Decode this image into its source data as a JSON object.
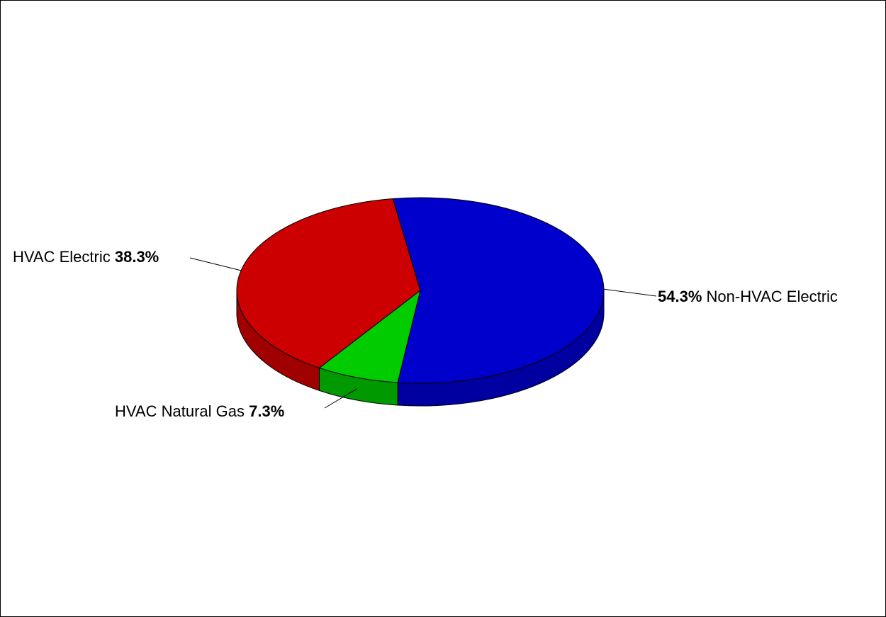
{
  "chart_data": {
    "type": "pie",
    "style": "3d",
    "slices": [
      {
        "label": "Non-HVAC Electric",
        "value": 54.3,
        "display": "54.3%",
        "color": "#0000CC",
        "side_color": "#0000A0",
        "label_side": "right"
      },
      {
        "label": "HVAC Natural Gas",
        "value": 7.3,
        "display": "7.3%",
        "color": "#00CC00",
        "side_color": "#009900",
        "label_side": "bottom"
      },
      {
        "label": "HVAC Electric",
        "value": 38.3,
        "display": "38.3%",
        "color": "#CC0000",
        "side_color": "#A00000",
        "label_side": "left"
      }
    ],
    "title": "",
    "legend": "none",
    "outline_color": "#000000"
  }
}
